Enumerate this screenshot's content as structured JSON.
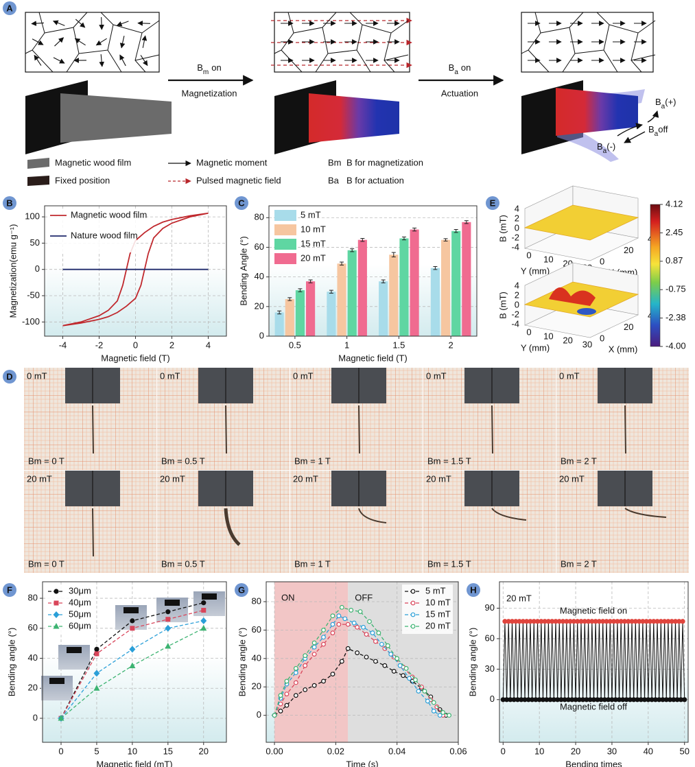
{
  "panel_a": {
    "letter": "A",
    "steps": [
      {
        "symbol": "B",
        "sub": "m",
        "state": "on",
        "label": "Magnetization"
      },
      {
        "symbol": "B",
        "sub": "a",
        "state": "on",
        "label": "Actuation"
      }
    ],
    "actuation_states": [
      {
        "symbol": "B",
        "sub": "a",
        "text": "(+)"
      },
      {
        "symbol": "B",
        "sub": "a",
        "text": "off"
      },
      {
        "symbol": "B",
        "sub": "a",
        "text": "(-)"
      }
    ],
    "legend": [
      {
        "label": "Magnetic wood film"
      },
      {
        "label": "Magnetic moment"
      },
      {
        "abbr": "Bm",
        "label": "B for magnetization"
      },
      {
        "label": "Fixed position"
      },
      {
        "label": "Pulsed magnetic field"
      },
      {
        "abbr": "Ba",
        "label": "B for actuation"
      }
    ]
  },
  "panel_d": {
    "letter": "D",
    "rows": [
      {
        "cells": [
          {
            "field": "0 mT",
            "bm": "Bm = 0 T"
          },
          {
            "field": "0 mT",
            "bm": "Bm = 0.5 T"
          },
          {
            "field": "0 mT",
            "bm": "Bm = 1 T"
          },
          {
            "field": "0 mT",
            "bm": "Bm = 1.5 T"
          },
          {
            "field": "0 mT",
            "bm": "Bm = 2 T"
          }
        ]
      },
      {
        "cells": [
          {
            "field": "20 mT",
            "bm": "Bm = 0 T"
          },
          {
            "field": "20 mT",
            "bm": "Bm = 0.5 T"
          },
          {
            "field": "20 mT",
            "bm": "Bm = 1 T"
          },
          {
            "field": "20 mT",
            "bm": "Bm = 1.5 T"
          },
          {
            "field": "20 mT",
            "bm": "Bm = 2 T"
          }
        ]
      }
    ]
  },
  "panel_e": {
    "letter": "E",
    "z_label": "B (mT)",
    "y_label": "Y (mm)",
    "x_label": "X (mm)",
    "z_ticks": [
      "4",
      "2",
      "0",
      "-2",
      "-4"
    ],
    "y_ticks": [
      "0",
      "10",
      "20",
      "30"
    ],
    "x_ticks": [
      "0",
      "20",
      "40"
    ],
    "colorbar_ticks": [
      "4.12",
      "2.45",
      "0.87",
      "-0.75",
      "-2.38",
      "-4.00"
    ]
  },
  "chart_data": [
    {
      "type": "line",
      "panel": "B",
      "xlabel": "Magnetic field (T)",
      "ylabel": "Magnetization(emu g⁻¹)",
      "xlim": [
        -5,
        5
      ],
      "xticks": [
        -4,
        -2,
        0,
        2,
        4
      ],
      "ylim": [
        -127,
        121
      ],
      "yticks": [
        -100,
        -50,
        0,
        50,
        100
      ],
      "grid": true,
      "legend": "upper left",
      "line_style": "solid",
      "series": [
        {
          "name": "Magnetic wood film",
          "color": "#c0282d",
          "x": [
            -4,
            -3,
            -2,
            -1.5,
            -1,
            -0.5,
            0,
            0.3,
            0.5,
            0.7,
            1,
            1.5,
            2,
            3,
            4,
            3,
            2,
            1.5,
            1,
            0.5,
            0,
            -0.3,
            -0.5,
            -0.7,
            -1,
            -1.5,
            -2,
            -3,
            -4
          ],
          "values": [
            -107,
            -102,
            -95,
            -90,
            -82,
            -70,
            -55,
            -30,
            0,
            30,
            60,
            78,
            88,
            100,
            107,
            102,
            95,
            90,
            82,
            70,
            55,
            30,
            0,
            -30,
            -60,
            -78,
            -88,
            -100,
            -107
          ]
        },
        {
          "name": "Nature wood film",
          "color": "#1f2a6b",
          "x": [
            -4,
            4
          ],
          "values": [
            0,
            0
          ]
        }
      ]
    },
    {
      "type": "bar",
      "panel": "C",
      "xlabel": "Magnetic field (T)",
      "ylabel": "Bending Angle (°)",
      "categories": [
        "0.5",
        "1",
        "1.5",
        "2"
      ],
      "ylim": [
        0,
        88
      ],
      "yticks": [
        0,
        20,
        40,
        60,
        80
      ],
      "grid": true,
      "legend": "upper left",
      "series": [
        {
          "name": "5 mT",
          "color": "#a8dcea",
          "values": [
            16,
            30,
            37,
            46
          ],
          "errors": [
            1,
            1,
            1,
            1
          ]
        },
        {
          "name": "10 mT",
          "color": "#f6c6a0",
          "values": [
            25,
            49,
            55,
            65
          ],
          "errors": [
            1,
            1,
            1.5,
            0.8
          ]
        },
        {
          "name": "15 mT",
          "color": "#5fd6a2",
          "values": [
            31,
            58,
            66,
            71
          ],
          "errors": [
            1,
            1,
            1,
            1
          ]
        },
        {
          "name": "20 mT",
          "color": "#f06b90",
          "values": [
            37,
            65,
            72,
            77
          ],
          "errors": [
            1,
            1,
            1,
            1
          ]
        }
      ]
    },
    {
      "type": "line",
      "panel": "F",
      "xlabel": "Magnetic field (mT)",
      "ylabel": "Bending angle (°)",
      "xlim": [
        -2.6,
        23.2
      ],
      "xticks": [
        0,
        5,
        10,
        15,
        20
      ],
      "ylim": [
        -16,
        91
      ],
      "yticks": [
        0,
        20,
        40,
        60,
        80
      ],
      "grid": true,
      "legend": "upper left",
      "line_style": "dashed",
      "series": [
        {
          "name": "30μm",
          "color": "#111111",
          "marker": "circle",
          "x": [
            0,
            5,
            10,
            15,
            20
          ],
          "values": [
            0,
            46,
            65,
            71,
            77
          ]
        },
        {
          "name": "40μm",
          "color": "#d9455a",
          "marker": "square",
          "x": [
            0,
            5,
            10,
            15,
            20
          ],
          "values": [
            0,
            43,
            60,
            66,
            72
          ]
        },
        {
          "name": "50μm",
          "color": "#2a9fd8",
          "marker": "diamond",
          "x": [
            0,
            5,
            10,
            15,
            20
          ],
          "values": [
            0,
            30,
            46,
            60,
            65
          ]
        },
        {
          "name": "60μm",
          "color": "#3cb371",
          "marker": "triangle",
          "x": [
            0,
            5,
            10,
            15,
            20
          ],
          "values": [
            0,
            20,
            35,
            48,
            60
          ]
        }
      ]
    },
    {
      "type": "line",
      "panel": "G",
      "xlabel": "Time (s)",
      "ylabel": "Bending angle (°)",
      "xlim": [
        -0.0027,
        0.06
      ],
      "xticks": [
        {
          "value": 0,
          "label": "0.00"
        },
        0.02,
        0.04,
        0.06
      ],
      "ylim": [
        -19,
        94
      ],
      "yticks": [
        0,
        20,
        40,
        60,
        80
      ],
      "grid": true,
      "legend": "upper right",
      "line_style": "dashed",
      "regions": [
        {
          "label": "ON",
          "range": [
            0,
            0.024
          ],
          "color": "#f2c6c6"
        },
        {
          "label": "OFF",
          "range": [
            0.024,
            0.06
          ],
          "color": "#dedede"
        }
      ],
      "series": [
        {
          "name": "5 mT",
          "color": "#111111",
          "marker": "open-circle",
          "x": [
            0,
            0.002,
            0.004,
            0.007,
            0.01,
            0.013,
            0.016,
            0.019,
            0.022,
            0.024,
            0.027,
            0.03,
            0.033,
            0.036,
            0.039,
            0.042,
            0.045,
            0.048,
            0.051,
            0.054,
            0.056
          ],
          "values": [
            0,
            3,
            7,
            14,
            18,
            21,
            24,
            29,
            38,
            47,
            44,
            41,
            38,
            35,
            31,
            28,
            24,
            19,
            13,
            4,
            0
          ]
        },
        {
          "name": "10 mT",
          "color": "#d9455a",
          "marker": "open-circle",
          "x": [
            0,
            0.002,
            0.004,
            0.007,
            0.01,
            0.013,
            0.016,
            0.019,
            0.021,
            0.024,
            0.027,
            0.03,
            0.033,
            0.036,
            0.039,
            0.042,
            0.045,
            0.048,
            0.051,
            0.053,
            0.055
          ],
          "values": [
            0,
            8,
            15,
            23,
            35,
            43,
            50,
            58,
            64,
            64,
            62,
            57,
            52,
            47,
            41,
            34,
            27,
            20,
            11,
            6,
            0
          ]
        },
        {
          "name": "15 mT",
          "color": "#2a9fd8",
          "marker": "open-circle",
          "x": [
            0,
            0.002,
            0.004,
            0.007,
            0.01,
            0.013,
            0.016,
            0.019,
            0.021,
            0.023,
            0.026,
            0.029,
            0.032,
            0.035,
            0.038,
            0.041,
            0.044,
            0.047,
            0.05,
            0.052,
            0.054
          ],
          "values": [
            0,
            12,
            22,
            30,
            40,
            48,
            55,
            64,
            70,
            68,
            65,
            62,
            58,
            50,
            43,
            35,
            26,
            17,
            10,
            3,
            0
          ]
        },
        {
          "name": "20 mT",
          "color": "#3cb371",
          "marker": "open-circle",
          "x": [
            0,
            0.002,
            0.004,
            0.007,
            0.01,
            0.013,
            0.016,
            0.019,
            0.022,
            0.025,
            0.028,
            0.031,
            0.034,
            0.037,
            0.04,
            0.043,
            0.046,
            0.049,
            0.052,
            0.055,
            0.057
          ],
          "values": [
            0,
            14,
            24,
            33,
            42,
            51,
            60,
            70,
            76,
            74,
            73,
            66,
            58,
            49,
            40,
            33,
            25,
            17,
            9,
            2,
            0
          ]
        }
      ]
    },
    {
      "type": "line",
      "panel": "H",
      "xlabel": "Bending times",
      "ylabel": "Bending angle (°)",
      "xlim": [
        -1,
        51
      ],
      "xticks": [
        0,
        10,
        20,
        30,
        40,
        50
      ],
      "ylim": [
        -42,
        116
      ],
      "yticks": [
        0,
        30,
        60,
        90
      ],
      "grid": true,
      "line_style": "solid",
      "peak_color": "#e0453d",
      "annotations": [
        {
          "text": "20 mT",
          "color": "#e0453d"
        },
        {
          "text": "Magnetic field on",
          "color": "#e0453d"
        },
        {
          "text": "Magnetic field off",
          "color": "#111111"
        }
      ],
      "series": [
        {
          "color": "#111111",
          "marker": "circle",
          "x": [
            0,
            0.5,
            1,
            1.5,
            2,
            2.5,
            3,
            3.5,
            4,
            4.5,
            5,
            5.5,
            6,
            6.5,
            7,
            7.5,
            8,
            8.5,
            9,
            9.5,
            10,
            10.5,
            11,
            11.5,
            12,
            12.5,
            13,
            13.5,
            14,
            14.5,
            15,
            15.5,
            16,
            16.5,
            17,
            17.5,
            18,
            18.5,
            19,
            19.5,
            20,
            20.5,
            21,
            21.5,
            22,
            22.5,
            23,
            23.5,
            24,
            24.5,
            25,
            25.5,
            26,
            26.5,
            27,
            27.5,
            28,
            28.5,
            29,
            29.5,
            30,
            30.5,
            31,
            31.5,
            32,
            32.5,
            33,
            33.5,
            34,
            34.5,
            35,
            35.5,
            36,
            36.5,
            37,
            37.5,
            38,
            38.5,
            39,
            39.5,
            40,
            40.5,
            41,
            41.5,
            42,
            42.5,
            43,
            43.5,
            44,
            44.5,
            45,
            45.5,
            46,
            46.5,
            47,
            47.5,
            48,
            48.5,
            49,
            49.5,
            50
          ],
          "values": [
            0,
            77,
            0,
            77,
            0,
            77,
            0,
            77,
            0,
            77,
            0,
            77,
            0,
            77,
            0,
            77,
            0,
            77,
            0,
            77,
            0,
            77,
            0,
            77,
            0,
            77,
            0,
            77,
            0,
            77,
            0,
            77,
            0,
            77,
            0,
            77,
            0,
            77,
            0,
            77,
            0,
            77,
            0,
            77,
            0,
            77,
            0,
            77,
            0,
            77,
            0,
            77,
            0,
            77,
            0,
            77,
            0,
            77,
            0,
            77,
            0,
            77,
            0,
            77,
            0,
            77,
            0,
            77,
            0,
            77,
            0,
            77,
            0,
            77,
            0,
            77,
            0,
            77,
            0,
            77,
            0,
            77,
            0,
            77,
            0,
            77,
            0,
            77,
            0,
            77,
            0,
            77,
            0,
            77,
            0,
            77,
            0,
            77,
            0,
            77,
            0
          ]
        }
      ]
    }
  ]
}
